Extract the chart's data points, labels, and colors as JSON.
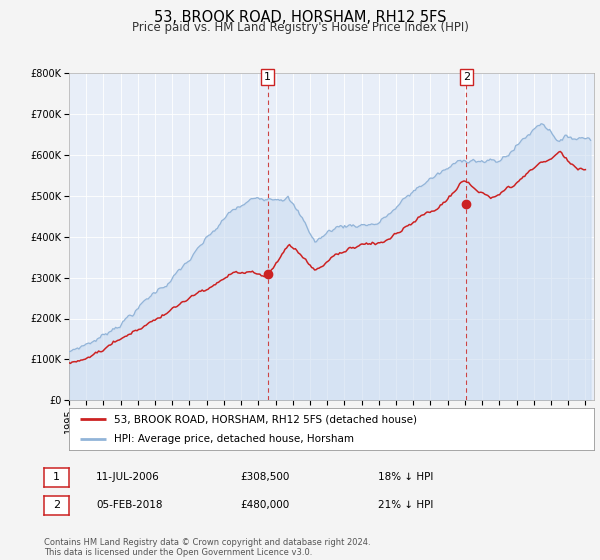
{
  "title": "53, BROOK ROAD, HORSHAM, RH12 5FS",
  "subtitle": "Price paid vs. HM Land Registry's House Price Index (HPI)",
  "ylim": [
    0,
    800000
  ],
  "yticks": [
    0,
    100000,
    200000,
    300000,
    400000,
    500000,
    600000,
    700000,
    800000
  ],
  "ytick_labels": [
    "£0",
    "£100K",
    "£200K",
    "£300K",
    "£400K",
    "£500K",
    "£600K",
    "£700K",
    "£800K"
  ],
  "xlim_start": 1995.0,
  "xlim_end": 2025.5,
  "xticks": [
    1995,
    1996,
    1997,
    1998,
    1999,
    2000,
    2001,
    2002,
    2003,
    2004,
    2005,
    2006,
    2007,
    2008,
    2009,
    2010,
    2011,
    2012,
    2013,
    2014,
    2015,
    2016,
    2017,
    2018,
    2019,
    2020,
    2021,
    2022,
    2023,
    2024,
    2025
  ],
  "hpi_color": "#92b4d8",
  "hpi_fill_color": "#c8daf0",
  "price_color": "#cc2222",
  "marker_color": "#cc2222",
  "annotation_box_color": "#cc2222",
  "vline_color": "#cc4444",
  "fig_bg": "#f4f4f4",
  "plot_bg": "#e8eef8",
  "grid_color": "#ffffff",
  "legend_label_price": "53, BROOK ROAD, HORSHAM, RH12 5FS (detached house)",
  "legend_label_hpi": "HPI: Average price, detached house, Horsham",
  "sale1_x": 2006.536,
  "sale1_y": 308500,
  "sale1_label": "1",
  "sale1_date": "11-JUL-2006",
  "sale1_price": "£308,500",
  "sale1_hpi": "18% ↓ HPI",
  "sale2_x": 2018.09,
  "sale2_y": 480000,
  "sale2_label": "2",
  "sale2_date": "05-FEB-2018",
  "sale2_price": "£480,000",
  "sale2_hpi": "21% ↓ HPI",
  "footer": "Contains HM Land Registry data © Crown copyright and database right 2024.\nThis data is licensed under the Open Government Licence v3.0.",
  "title_fontsize": 10.5,
  "subtitle_fontsize": 8.5,
  "tick_fontsize": 7,
  "legend_fontsize": 7.5,
  "annot_fontsize": 7.5,
  "footer_fontsize": 6
}
